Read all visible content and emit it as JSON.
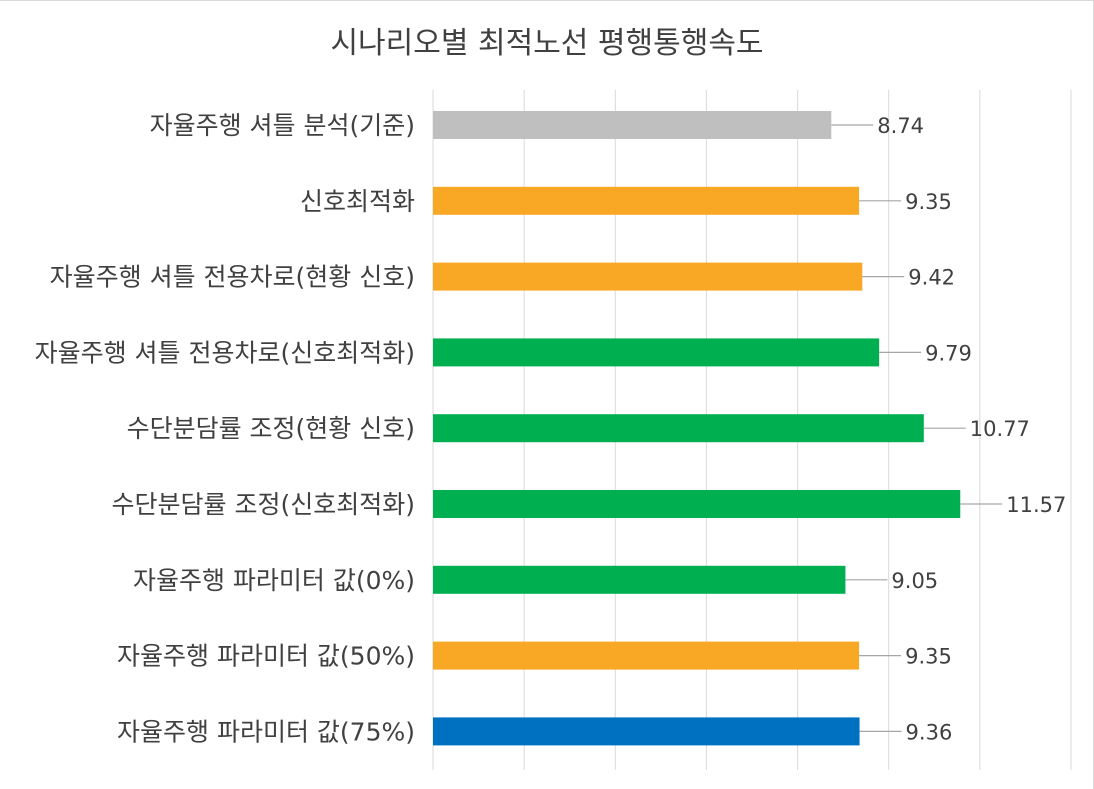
{
  "chart_data": {
    "type": "bar",
    "orientation": "horizontal",
    "title": "시나리오별 최적노선 평행통행속도",
    "categories": [
      "자율주행 셔틀 분석(기준)",
      "신호최적화",
      "자율주행 셔틀 전용차로(현황 신호)",
      "자율주행 셔틀 전용차로(신호최적화)",
      "수단분담률 조정(현황 신호)",
      "수단분담률 조정(신호최적화)",
      "자율주행 파라미터 값(0%)",
      "자율주행 파라미터 값(50%)",
      "자율주행 파라미터 값(75%)"
    ],
    "values": [
      8.74,
      9.35,
      9.42,
      9.79,
      10.77,
      11.57,
      9.05,
      9.35,
      9.36
    ],
    "value_labels": [
      "8.74",
      "9.35",
      "9.42",
      "9.79",
      "10.77",
      "11.57",
      "9.05",
      "9.35",
      "9.36"
    ],
    "colors": [
      "#bfbfbf",
      "#f9a825",
      "#f9a825",
      "#00b050",
      "#00b050",
      "#00b050",
      "#00b050",
      "#f9a825",
      "#0070c0"
    ],
    "xlim": [
      0,
      14
    ],
    "grid": true,
    "data_labels": true,
    "legend": "none"
  }
}
